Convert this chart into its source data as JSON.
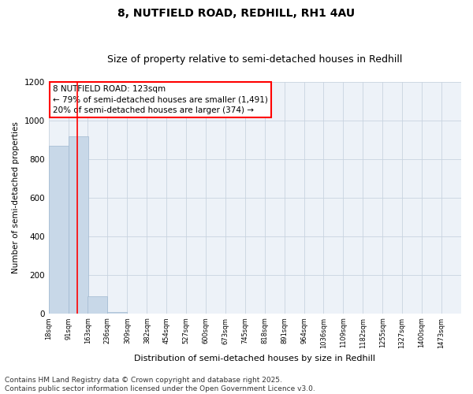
{
  "title": "8, NUTFIELD ROAD, REDHILL, RH1 4AU",
  "subtitle": "Size of property relative to semi-detached houses in Redhill",
  "xlabel": "Distribution of semi-detached houses by size in Redhill",
  "ylabel": "Number of semi-detached properties",
  "bin_labels": [
    "18sqm",
    "91sqm",
    "163sqm",
    "236sqm",
    "309sqm",
    "382sqm",
    "454sqm",
    "527sqm",
    "600sqm",
    "673sqm",
    "745sqm",
    "818sqm",
    "891sqm",
    "964sqm",
    "1036sqm",
    "1109sqm",
    "1182sqm",
    "1255sqm",
    "1327sqm",
    "1400sqm",
    "1473sqm"
  ],
  "bin_edges": [
    18,
    91,
    163,
    236,
    309,
    382,
    454,
    527,
    600,
    673,
    745,
    818,
    891,
    964,
    1036,
    1109,
    1182,
    1255,
    1327,
    1400,
    1473
  ],
  "bar_heights": [
    870,
    920,
    90,
    5,
    0,
    0,
    0,
    0,
    0,
    0,
    0,
    0,
    0,
    0,
    0,
    0,
    0,
    0,
    0,
    0
  ],
  "bar_color": "#c8d8e8",
  "bar_edgecolor": "#a0b8d0",
  "vline_x": 123,
  "vline_color": "red",
  "annotation_line1": "8 NUTFIELD ROAD: 123sqm",
  "annotation_line2": "← 79% of semi-detached houses are smaller (1,491)",
  "annotation_line3": "20% of semi-detached houses are larger (374) →",
  "annotation_box_color": "red",
  "ylim": [
    0,
    1200
  ],
  "yticks": [
    0,
    200,
    400,
    600,
    800,
    1000,
    1200
  ],
  "grid_color": "#c8d4e0",
  "bg_color": "#edf2f8",
  "footer_text": "Contains HM Land Registry data © Crown copyright and database right 2025.\nContains public sector information licensed under the Open Government Licence v3.0.",
  "title_fontsize": 10,
  "subtitle_fontsize": 9,
  "annot_fontsize": 7.5,
  "footer_fontsize": 6.5,
  "ylabel_fontsize": 7.5,
  "xlabel_fontsize": 8
}
